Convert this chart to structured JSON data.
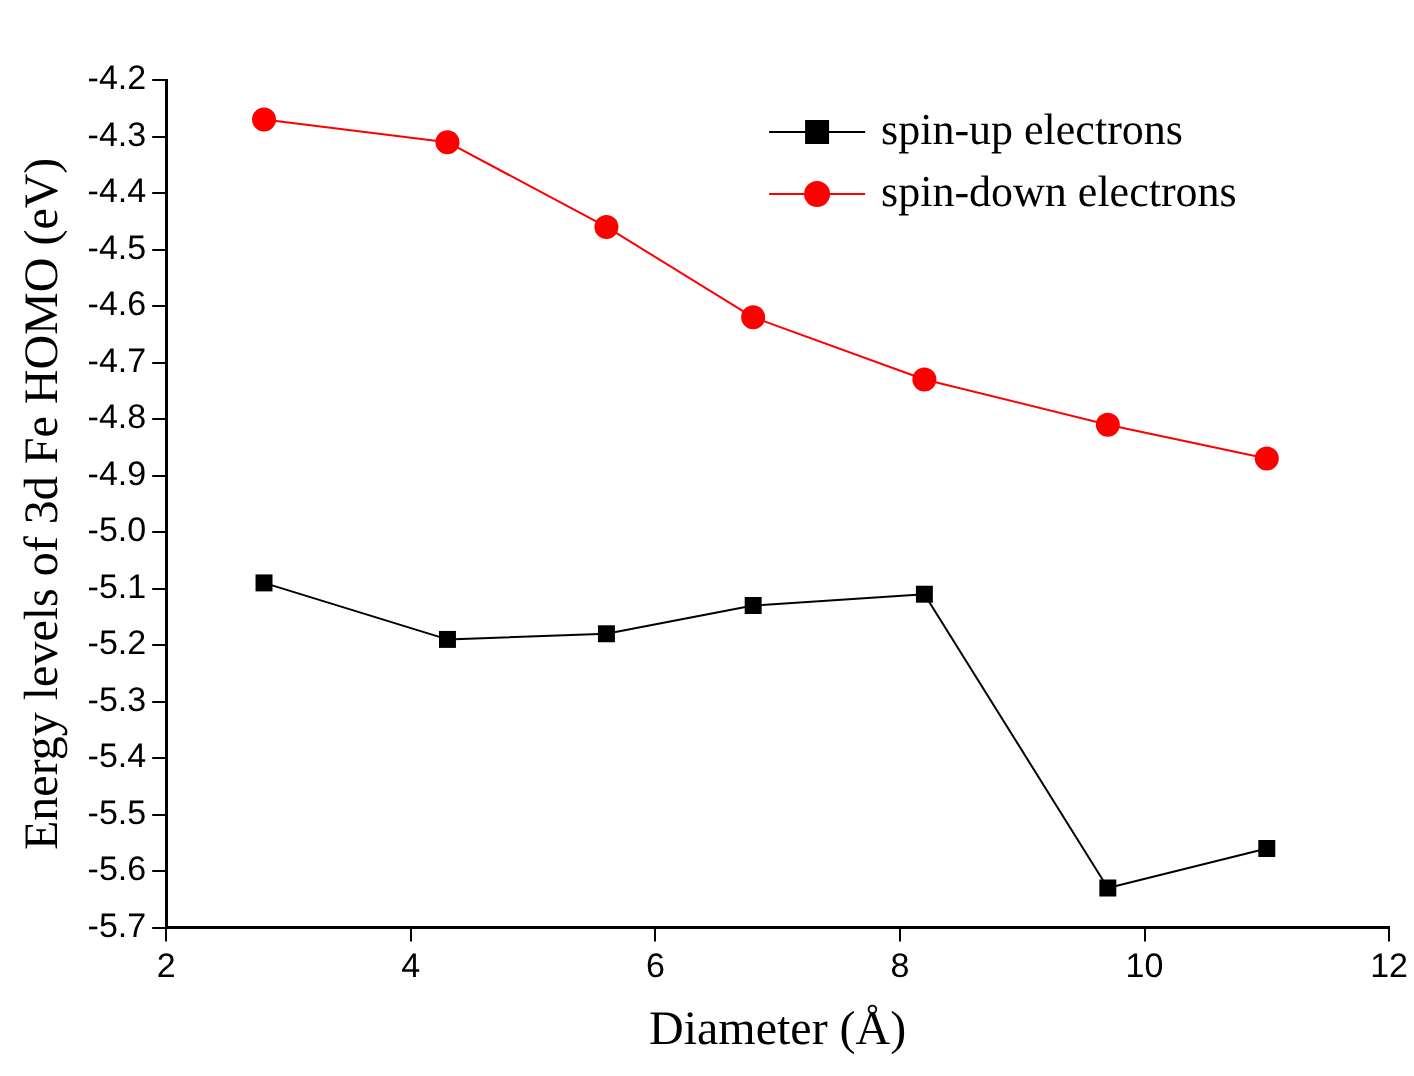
{
  "chart_data": {
    "type": "line",
    "xlabel": "Diameter (Å)",
    "ylabel": "Energy levels of 3d Fe HOMO (eV)",
    "x": [
      2.8,
      4.3,
      5.6,
      6.8,
      8.2,
      9.7,
      11.0
    ],
    "series": [
      {
        "name": "spin-up electrons",
        "color": "#000000",
        "marker": "square",
        "values": [
          -5.09,
          -5.19,
          -5.18,
          -5.13,
          -5.11,
          -5.63,
          -5.56
        ]
      },
      {
        "name": "spin-down electrons",
        "color": "#ff0000",
        "marker": "circle",
        "values": [
          -4.27,
          -4.31,
          -4.46,
          -4.62,
          -4.73,
          -4.81,
          -4.87
        ]
      }
    ],
    "xlim": [
      2,
      12
    ],
    "xticks": [
      2,
      4,
      6,
      8,
      10,
      12
    ],
    "ylim": [
      -5.7,
      -4.2
    ],
    "yticks": [
      -5.7,
      -5.6,
      -5.5,
      -5.4,
      -5.3,
      -5.2,
      -5.1,
      {
        "value": -5,
        "label": "-5.0"
      },
      -4.9,
      -4.8,
      -4.7,
      -4.6,
      -4.5,
      -4.4,
      -4.3,
      -4.2
    ],
    "grid": false,
    "legend": "top right",
    "line_style": "solid"
  }
}
